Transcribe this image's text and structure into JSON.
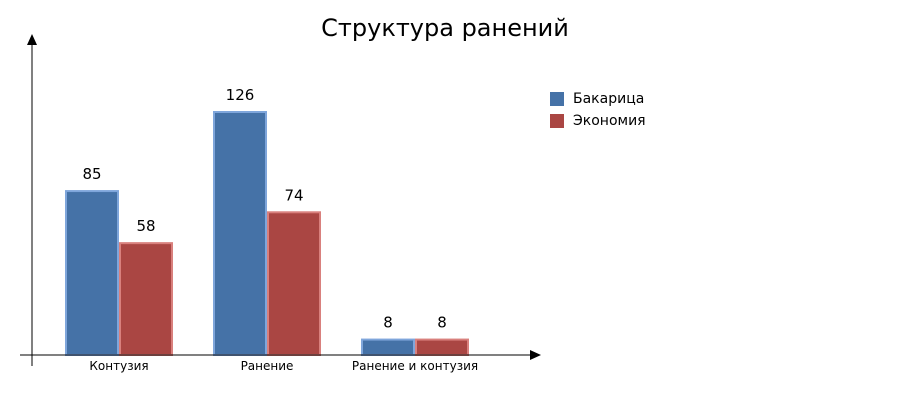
{
  "chart_data": {
    "type": "bar",
    "title": "Структура ранений",
    "categories": [
      "Контузия",
      "Ранение",
      "Ранение и контузия"
    ],
    "series": [
      {
        "name": "Бакарица",
        "values": [
          85,
          126,
          8
        ],
        "color": "#4572A7",
        "stroke": "#7FA6DB"
      },
      {
        "name": "Экономия",
        "values": [
          58,
          74,
          8
        ],
        "color": "#AA4643",
        "stroke": "#D9807D"
      }
    ],
    "ylim": [
      0,
      140
    ],
    "grid": false,
    "legend": "right",
    "data_labels": true
  }
}
